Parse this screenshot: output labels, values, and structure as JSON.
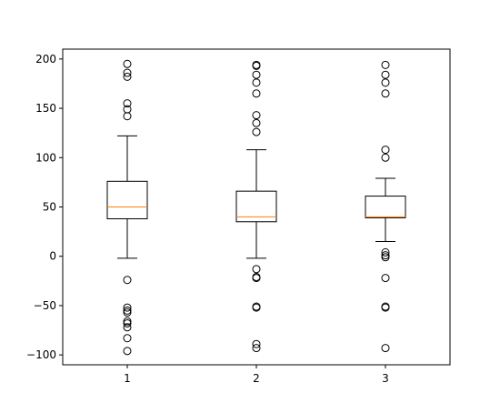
{
  "chart_data": {
    "type": "box",
    "title": "",
    "xlabel": "",
    "ylabel": "",
    "categories": [
      "1",
      "2",
      "3"
    ],
    "ylim": [
      -110,
      210
    ],
    "yticks": [
      -100,
      -50,
      0,
      50,
      100,
      150,
      200
    ],
    "grid": false,
    "legend": "none",
    "colors": {
      "box": "#000000",
      "median": "#ff7f0e",
      "flier": "#000000",
      "axis": "#000000"
    },
    "boxes": [
      {
        "category": "1",
        "whisker_low": -2,
        "q1": 38,
        "median": 50,
        "q3": 76,
        "whisker_high": 122,
        "fliers": [
          195,
          186,
          182,
          155,
          149,
          142,
          -24,
          -52,
          -55,
          -57,
          -66,
          -68,
          -72,
          -83,
          -96
        ]
      },
      {
        "category": "2",
        "whisker_low": -2,
        "q1": 35,
        "median": 40,
        "q3": 66,
        "whisker_high": 108,
        "fliers": [
          194,
          193,
          184,
          176,
          165,
          143,
          135,
          126,
          -13,
          -21,
          -22,
          -51,
          -52,
          -89,
          -93
        ]
      },
      {
        "category": "3",
        "whisker_low": 15,
        "q1": 39,
        "median": 40,
        "q3": 61,
        "whisker_high": 79,
        "fliers": [
          194,
          184,
          176,
          165,
          108,
          100,
          4,
          1,
          -1,
          -22,
          -51,
          -52,
          -93
        ]
      }
    ]
  }
}
